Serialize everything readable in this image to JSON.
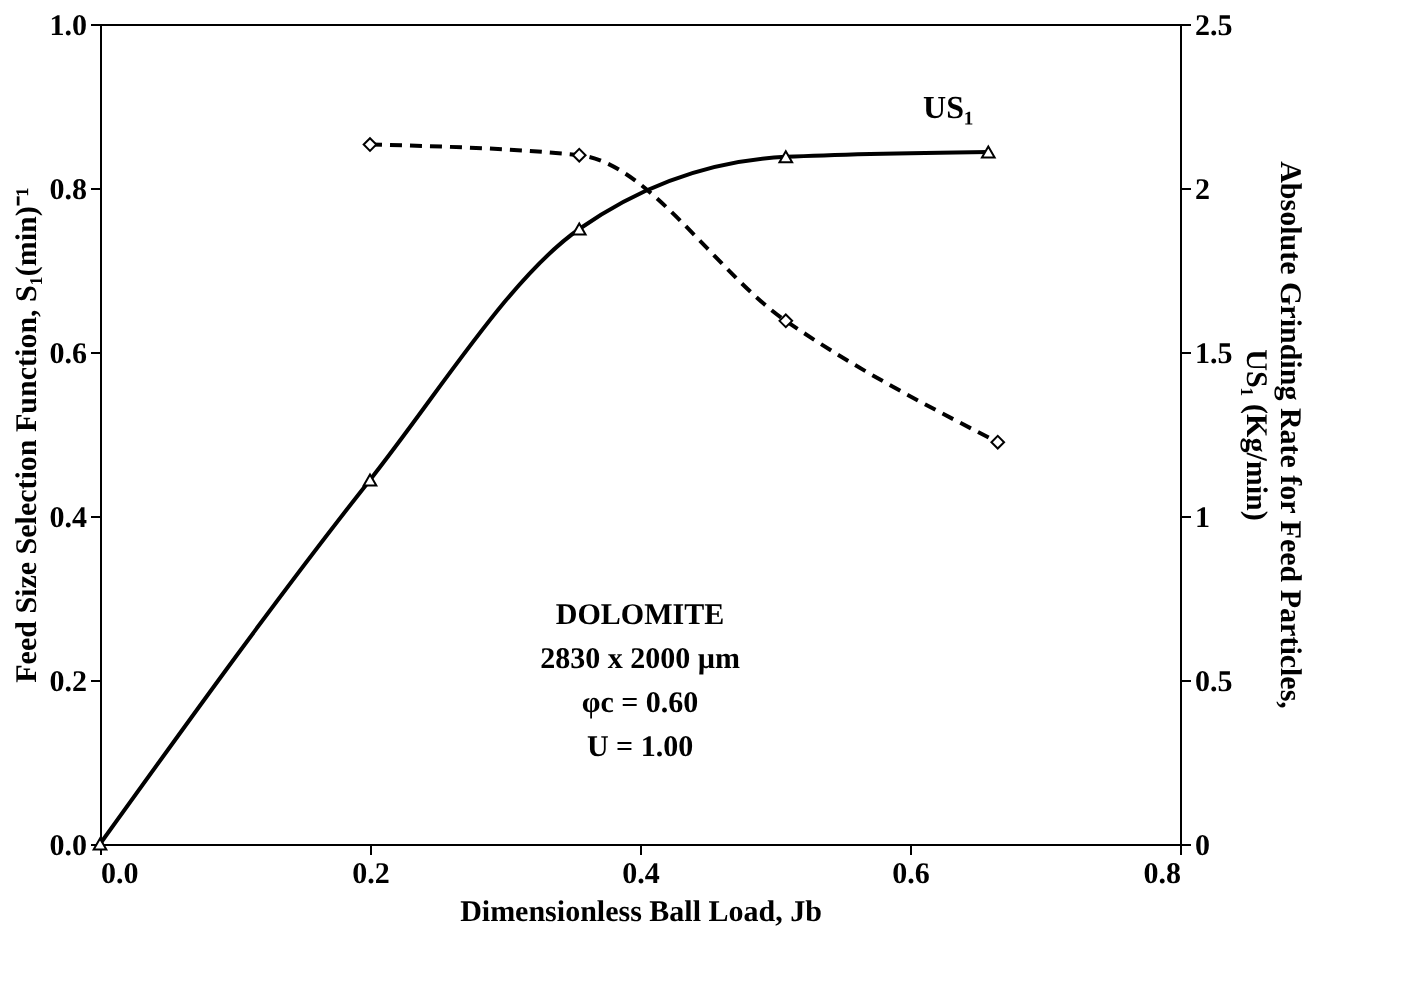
{
  "chart_data": {
    "type": "line",
    "xlabel": "Dimensionless Ball Load, Jb",
    "ylabel": "Feed Size Selection Function, S₁(min)⁻¹",
    "y2label": "Absolute Grinding Rate for Feed Particles, US₁ (Kg/min)",
    "xlim": [
      0,
      0.8
    ],
    "xticks": [
      {
        "value": 0,
        "label": "0.0"
      },
      {
        "value": 0.2,
        "label": "0.2"
      },
      {
        "value": 0.4,
        "label": "0.4"
      },
      {
        "value": 0.6,
        "label": "0.6"
      },
      {
        "value": 0.8,
        "label": "0.8"
      }
    ],
    "ylim": [
      0,
      1
    ],
    "yticks": [
      {
        "value": 0,
        "label": "0.0"
      },
      {
        "value": 0.2,
        "label": "0.2"
      },
      {
        "value": 0.4,
        "label": "0.4"
      },
      {
        "value": 0.6,
        "label": "0.6"
      },
      {
        "value": 0.8,
        "label": "0.8"
      },
      {
        "value": 1,
        "label": "1.0"
      }
    ],
    "y2lim": [
      0,
      2.5
    ],
    "y2ticks": [
      0,
      0.5,
      1,
      1.5,
      2,
      2.5
    ],
    "series": [
      {
        "color": "#000000",
        "x": [
          0.2,
          0.355,
          0.508,
          0.665
        ],
        "values": [
          0.853,
          0.84,
          0.638,
          0.49
        ],
        "marker": "diamond",
        "line_style": "dashed"
      },
      {
        "name": "US₁",
        "color": "#000000",
        "axis": "y2",
        "x": [
          0,
          0.2,
          0.355,
          0.508,
          0.658
        ],
        "values": [
          0,
          1.11,
          1.875,
          2.095,
          2.11
        ],
        "marker": "triangle",
        "line_style": "solid"
      }
    ],
    "annotations": [
      "DOLOMITE",
      "2830 x 2000 µm",
      "φc = 0.60",
      "U = 1.00"
    ],
    "grid": false
  }
}
